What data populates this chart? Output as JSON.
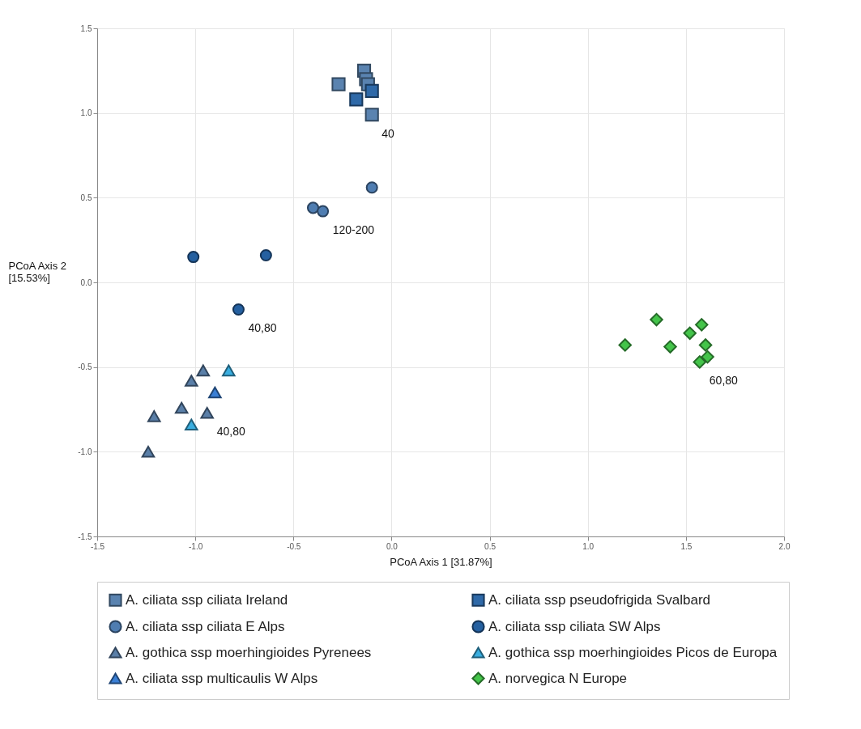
{
  "chart_data": {
    "type": "scatter",
    "xlabel": "PCoA Axis 1 [31.87%]",
    "ylabel": "PCoA Axis 2\n[15.53%]",
    "xlim": [
      -1.5,
      2.0
    ],
    "ylim": [
      -1.5,
      1.5
    ],
    "xticks": [
      {
        "value": -1.5,
        "label": "-1.5"
      },
      {
        "value": -1.0,
        "label": "-1.0"
      },
      {
        "value": -0.5,
        "label": "-0.5"
      },
      {
        "value": 0,
        "label": "0.0"
      },
      {
        "value": 0.5,
        "label": "0.5"
      },
      {
        "value": 1.0,
        "label": "1.0"
      },
      {
        "value": 1.5,
        "label": "1.5"
      },
      {
        "value": 2.0,
        "label": "2.0"
      }
    ],
    "yticks": [
      {
        "value": -1.5,
        "label": "-1.5"
      },
      {
        "value": -1.0,
        "label": "-1.0"
      },
      {
        "value": -0.5,
        "label": "-0.5"
      },
      {
        "value": 0,
        "label": "0.0"
      },
      {
        "value": 0.5,
        "label": "0.5"
      },
      {
        "value": 1.0,
        "label": "1.0"
      },
      {
        "value": 1.5,
        "label": "1.5"
      }
    ],
    "grid": true,
    "legend": "bottom",
    "series": [
      {
        "name": "A. ciliata ssp ciliata Ireland",
        "marker": "square",
        "color": "#5a83b0",
        "x": [
          -0.27,
          -0.14,
          -0.13,
          -0.12,
          -0.1
        ],
        "values": [
          1.17,
          1.25,
          1.2,
          1.17,
          0.99
        ]
      },
      {
        "name": "A. ciliata ssp pseudofrigida Svalbard",
        "marker": "square",
        "color": "#2f69a8",
        "x": [
          -0.18,
          -0.1
        ],
        "values": [
          1.08,
          1.13
        ]
      },
      {
        "name": "A. ciliata ssp ciliata E Alps",
        "marker": "circle",
        "color": "#4f7db1",
        "x": [
          -0.1,
          -0.4,
          -0.35
        ],
        "values": [
          0.56,
          0.44,
          0.42
        ]
      },
      {
        "name": "A. ciliata ssp ciliata SW Alps",
        "marker": "circle",
        "color": "#2560a0",
        "x": [
          -1.01,
          -0.64,
          -0.78
        ],
        "values": [
          0.15,
          0.16,
          -0.16
        ]
      },
      {
        "name": "A. gothica ssp moerhingioides Pyrenees",
        "marker": "triangle",
        "color": "#5a7fa8",
        "x": [
          -0.96,
          -1.02,
          -1.07,
          -0.94,
          -1.21,
          -1.24
        ],
        "values": [
          -0.52,
          -0.58,
          -0.74,
          -0.77,
          -0.79,
          -1.0
        ]
      },
      {
        "name": "A. gothica ssp moerhingioides Picos de Europa",
        "marker": "triangle",
        "color": "#3aaee0",
        "x": [
          -0.83,
          -1.02
        ],
        "values": [
          -0.52,
          -0.84
        ]
      },
      {
        "name": "A. ciliata ssp multicaulis W Alps",
        "marker": "triangle",
        "color": "#3a7fd5",
        "x": [
          -0.9
        ],
        "values": [
          -0.65
        ]
      },
      {
        "name": "A. norvegica N Europe",
        "marker": "diamond",
        "color": "#44c44a",
        "x": [
          1.19,
          1.35,
          1.42,
          1.52,
          1.58,
          1.6,
          1.61,
          1.57
        ],
        "values": [
          -0.37,
          -0.22,
          -0.38,
          -0.3,
          -0.25,
          -0.37,
          -0.44,
          -0.47
        ]
      }
    ],
    "annotations": [
      {
        "text": "40",
        "x": -0.1,
        "y": 0.99
      },
      {
        "text": "120-200",
        "x": -0.35,
        "y": 0.42
      },
      {
        "text": "40,80",
        "x": -0.78,
        "y": -0.16
      },
      {
        "text": "40,80",
        "x": -0.94,
        "y": -0.77
      },
      {
        "text": "60,80",
        "x": 1.57,
        "y": -0.47
      }
    ]
  }
}
